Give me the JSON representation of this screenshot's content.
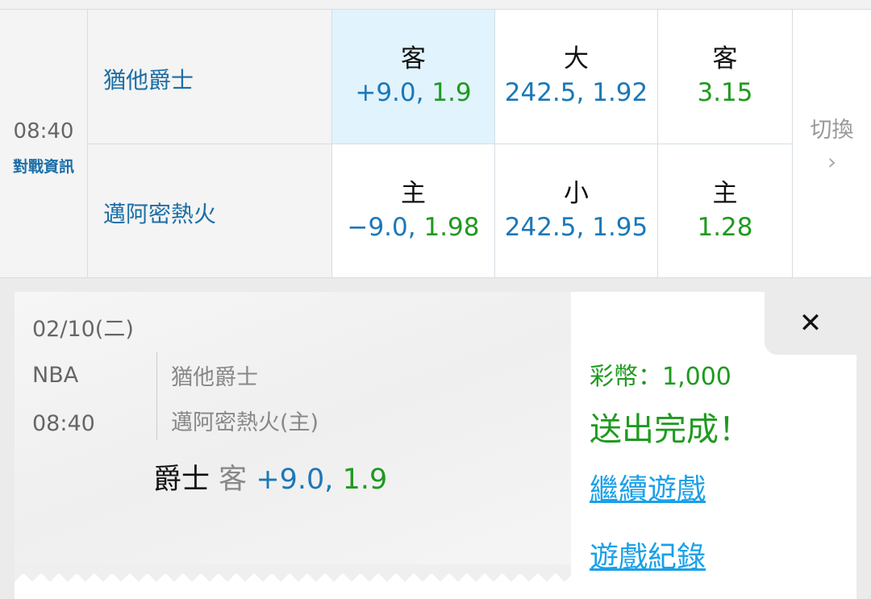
{
  "match": {
    "time": "08:40",
    "info_link": "對戰資訊",
    "away_team": "猶他爵士",
    "home_team": "邁阿密熱火",
    "away_odds": [
      {
        "label": "客",
        "line": "+9.0,",
        "price": "1.9"
      },
      {
        "label": "大",
        "line": "242.5,",
        "price": "1.92"
      },
      {
        "label": "客",
        "line": "",
        "price": "3.15"
      }
    ],
    "home_odds": [
      {
        "label": "主",
        "line": "−9.0,",
        "price": "1.98"
      },
      {
        "label": "小",
        "line": "242.5,",
        "price": "1.95"
      },
      {
        "label": "主",
        "line": "",
        "price": "1.28"
      }
    ],
    "switch_label": "切換",
    "switch_icon": "chevron-right-icon"
  },
  "ticket": {
    "date": "02/10(二)",
    "league": "NBA",
    "time": "08:40",
    "away_team": "猶他爵士",
    "home_team": "邁阿密熱火(主)",
    "pick_team": "爵士",
    "pick_side": "客",
    "pick_line": "+9.0,",
    "pick_price": "1.9",
    "close_label": "✕",
    "coins": "彩幣：1,000",
    "status": "送出完成！",
    "continue_link": "繼續遊戲",
    "history_link": "遊戲紀錄"
  },
  "colors": {
    "blue": "#1b78b8",
    "green": "#1f9a1f",
    "link": "#1aa0e8",
    "selected": "#e1f3fc"
  }
}
